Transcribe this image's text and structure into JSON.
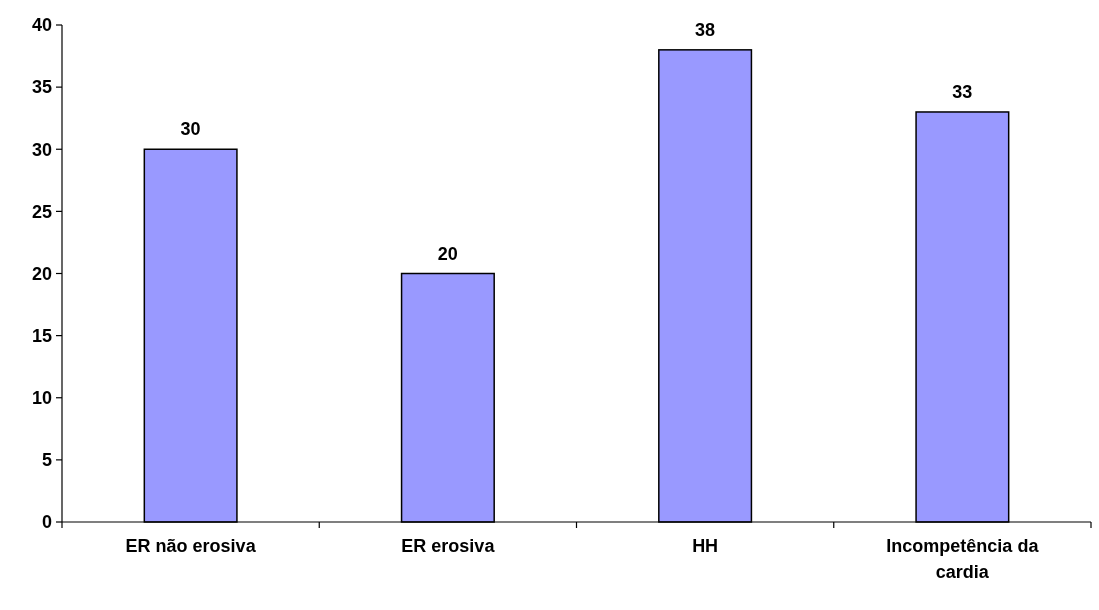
{
  "chart_data": {
    "type": "bar",
    "categories": [
      "ER não erosiva",
      "ER erosiva",
      "HH",
      "Incompetência da cardia"
    ],
    "values": [
      30,
      20,
      38,
      33
    ],
    "color": "#9999ff",
    "ylim": [
      0,
      40
    ],
    "yticks": [
      0,
      5,
      10,
      15,
      20,
      25,
      30,
      35,
      40
    ],
    "data_labels": true
  }
}
